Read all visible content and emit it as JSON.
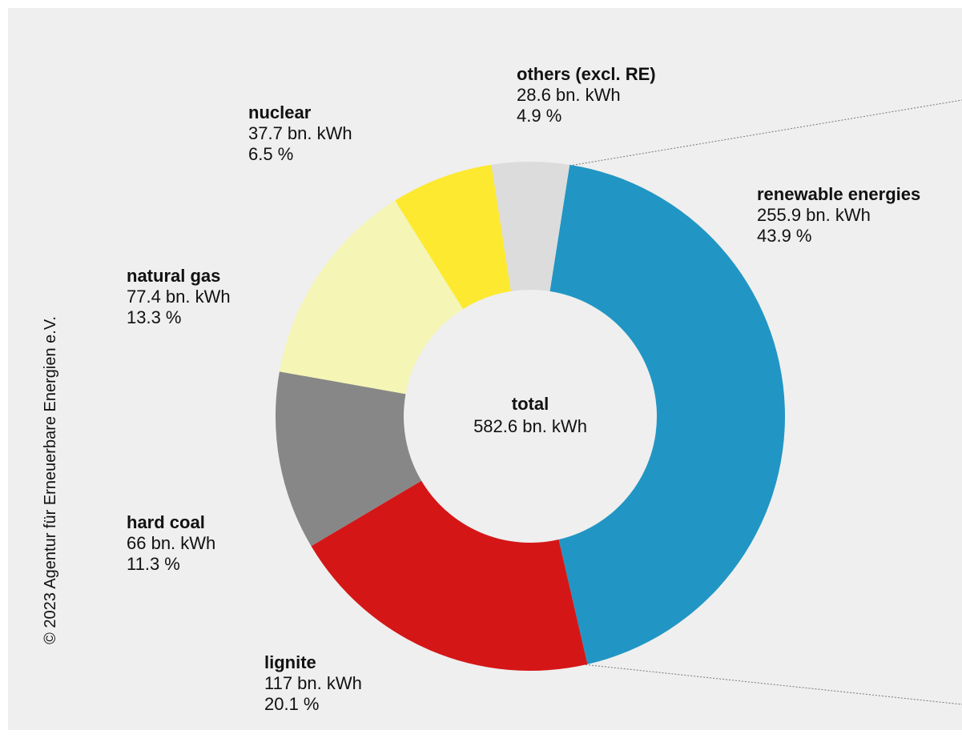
{
  "chart_data": {
    "type": "donut",
    "categories": [
      "renewable energies",
      "lignite",
      "hard coal",
      "natural gas",
      "nuclear",
      "others (excl. RE)"
    ],
    "values": [
      255.9,
      117,
      66,
      77.4,
      37.7,
      28.6
    ],
    "value_labels": [
      "255.9 bn. kWh",
      "117 bn. kWh",
      "66 bn. kWh",
      "77.4 bn. kWh",
      "37.7 bn. kWh",
      "28.6 bn. kWh"
    ],
    "percents": [
      43.9,
      20.1,
      11.3,
      13.3,
      6.5,
      4.9
    ],
    "percent_labels": [
      "43.9 %",
      "20.1 %",
      "11.3 %",
      "13.3 %",
      "6.5 %",
      "4.9 %"
    ],
    "colors": [
      "#2196c4",
      "#d51617",
      "#878787",
      "#f5f5b5",
      "#fde92f",
      "#dcdcdc"
    ],
    "center_label": "total",
    "total": 582.6,
    "total_label": "582.6 bn. kWh",
    "source": "© 2023 Agentur für Erneuerbare Energien e.V."
  }
}
